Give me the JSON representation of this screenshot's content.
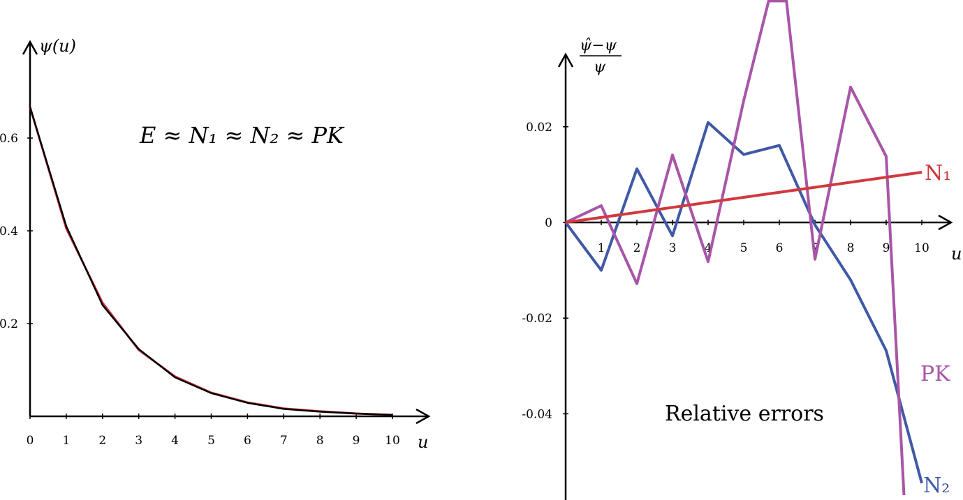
{
  "chart_data": [
    {
      "type": "line",
      "ylabel": "ψ(u)",
      "xlabel": "u",
      "annotation": "E ≈ N₁ ≈ N₂ ≈ PK",
      "xlim": [
        0,
        10
      ],
      "ylim": [
        0,
        0.7
      ],
      "x_ticks": [
        "0",
        "1",
        "2",
        "3",
        "4",
        "5",
        "6",
        "7",
        "8",
        "9",
        "10"
      ],
      "y_ticks": [
        "0.6",
        "0.4",
        "0.2"
      ],
      "y_tick_values": [
        0.6,
        0.4,
        0.2
      ],
      "x": [
        0,
        1,
        2,
        3,
        4,
        5,
        6,
        7,
        8,
        9,
        10
      ],
      "series": [
        {
          "color": "#d0353c",
          "values": [
            0.667,
            0.405,
            0.245,
            0.143,
            0.086,
            0.051,
            0.03,
            0.017,
            0.011,
            0.006,
            0.003
          ]
        },
        {
          "color": "#000000",
          "values": [
            0.667,
            0.41,
            0.24,
            0.145,
            0.084,
            0.05,
            0.029,
            0.016,
            0.01,
            0.006,
            0.003
          ]
        }
      ]
    },
    {
      "type": "line",
      "ylabel_num": "ψ̂−ψ",
      "ylabel_den": "ψ",
      "xlabel": "u",
      "title": "Relative errors",
      "xlim": [
        0,
        10
      ],
      "ylim": [
        -0.057,
        0.034
      ],
      "x_ticks": [
        "1",
        "2",
        "3",
        "4",
        "5",
        "6",
        "7",
        "8",
        "9",
        "10"
      ],
      "y_ticks": [
        "0.02",
        "0",
        "-0.02",
        "-0.04"
      ],
      "y_tick_values": [
        0.02,
        0,
        -0.02,
        -0.04
      ],
      "series": [
        {
          "name": "N₁",
          "color": "#d0393e",
          "x": [
            0,
            10
          ],
          "values": [
            0,
            0.0105
          ]
        },
        {
          "name": "PK",
          "color": "#a855a8",
          "x": [
            0,
            1,
            2,
            3,
            4,
            5,
            5.7,
            6.2,
            7,
            8,
            9,
            9.5
          ],
          "values": [
            0,
            0.0035,
            -0.0128,
            0.0141,
            -0.0082,
            0.0255,
            0.0463,
            0.0463,
            -0.0077,
            0.0283,
            0.0138,
            -0.057
          ]
        },
        {
          "name": "N₂",
          "color": "#4059a6",
          "x": [
            0,
            1,
            2,
            3,
            4,
            5,
            6,
            7,
            8,
            9,
            10
          ],
          "values": [
            0,
            -0.01,
            0.0112,
            -0.0028,
            0.0209,
            0.0142,
            0.0161,
            -0.0005,
            -0.012,
            -0.0268,
            -0.0545
          ]
        }
      ]
    }
  ]
}
